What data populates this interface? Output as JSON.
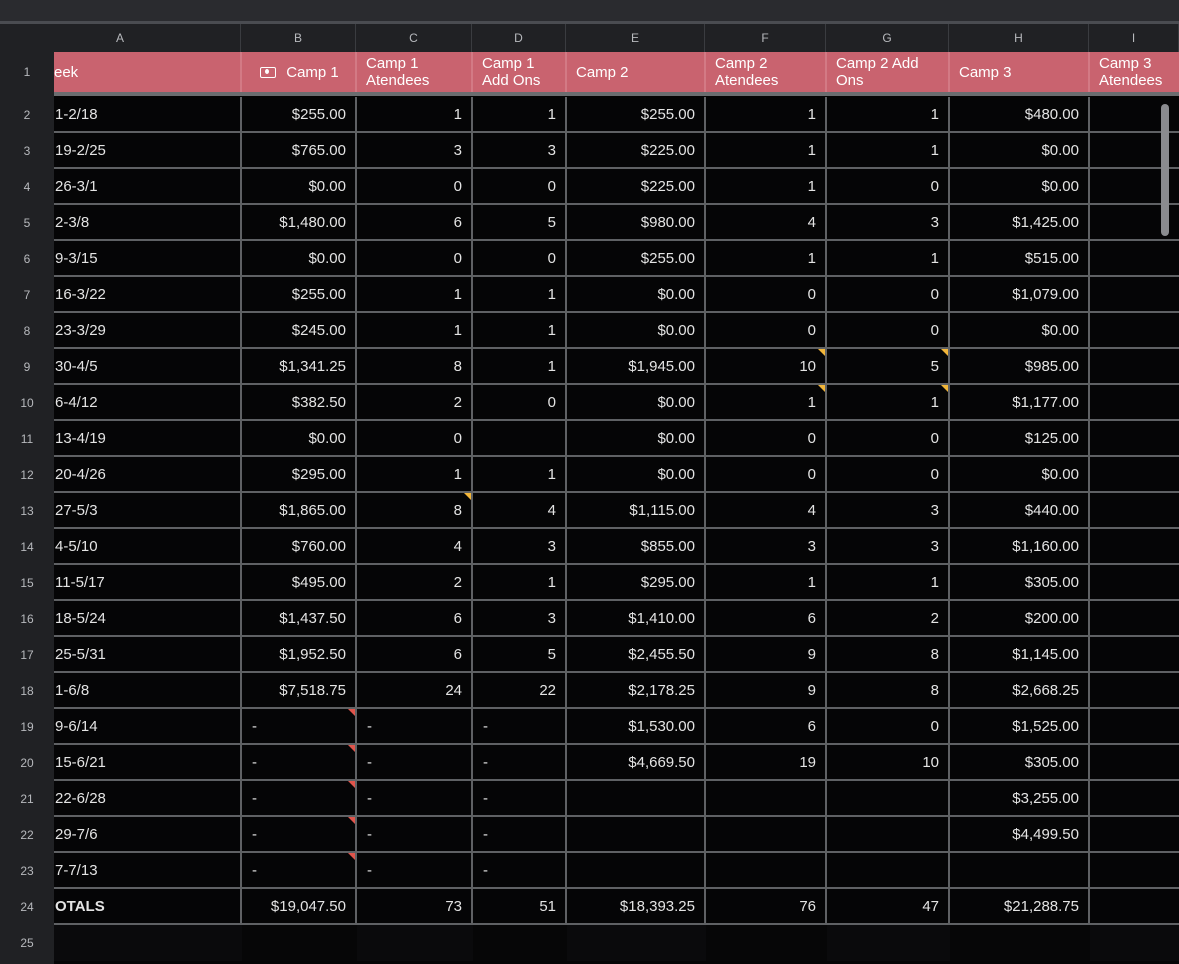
{
  "column_letters": [
    "A",
    "B",
    "C",
    "D",
    "E",
    "F",
    "G",
    "H",
    "I"
  ],
  "headers": [
    "eek",
    "Camp 1",
    "Camp 1 Atendees",
    "Camp 1 Add Ons",
    "Camp 2",
    "Camp 2 Atendees",
    "Camp 2 Add Ons",
    "Camp 3",
    "Camp 3 Atendees"
  ],
  "header_icon": "money-icon",
  "rows": [
    {
      "num": "2",
      "cells": [
        "1-2/18",
        "$255.00",
        "1",
        "1",
        "$255.00",
        "1",
        "1",
        "$480.00",
        ""
      ]
    },
    {
      "num": "3",
      "cells": [
        "19-2/25",
        "$765.00",
        "3",
        "3",
        "$225.00",
        "1",
        "1",
        "$0.00",
        ""
      ]
    },
    {
      "num": "4",
      "cells": [
        "26-3/1",
        "$0.00",
        "0",
        "0",
        "$225.00",
        "1",
        "0",
        "$0.00",
        ""
      ]
    },
    {
      "num": "5",
      "cells": [
        "2-3/8",
        "$1,480.00",
        "6",
        "5",
        "$980.00",
        "4",
        "3",
        "$1,425.00",
        ""
      ]
    },
    {
      "num": "6",
      "cells": [
        "9-3/15",
        "$0.00",
        "0",
        "0",
        "$255.00",
        "1",
        "1",
        "$515.00",
        ""
      ]
    },
    {
      "num": "7",
      "cells": [
        "16-3/22",
        "$255.00",
        "1",
        "1",
        "$0.00",
        "0",
        "0",
        "$1,079.00",
        ""
      ]
    },
    {
      "num": "8",
      "cells": [
        "23-3/29",
        "$245.00",
        "1",
        "1",
        "$0.00",
        "0",
        "0",
        "$0.00",
        ""
      ]
    },
    {
      "num": "9",
      "cells": [
        "30-4/5",
        "$1,341.25",
        "8",
        "1",
        "$1,945.00",
        "10",
        "5",
        "$985.00",
        ""
      ],
      "notes": {
        "5": "yellow",
        "6": "yellow"
      }
    },
    {
      "num": "10",
      "cells": [
        "6-4/12",
        "$382.50",
        "2",
        "0",
        "$0.00",
        "1",
        "1",
        "$1,177.00",
        ""
      ],
      "notes": {
        "5": "yellow",
        "6": "yellow"
      }
    },
    {
      "num": "11",
      "cells": [
        "13-4/19",
        "$0.00",
        "0",
        "",
        "$0.00",
        "0",
        "0",
        "$125.00",
        ""
      ]
    },
    {
      "num": "12",
      "cells": [
        "20-4/26",
        "$295.00",
        "1",
        "1",
        "$0.00",
        "0",
        "0",
        "$0.00",
        ""
      ]
    },
    {
      "num": "13",
      "cells": [
        "27-5/3",
        "$1,865.00",
        "8",
        "4",
        "$1,115.00",
        "4",
        "3",
        "$440.00",
        ""
      ],
      "notes": {
        "2": "yellow"
      }
    },
    {
      "num": "14",
      "cells": [
        "4-5/10",
        "$760.00",
        "4",
        "3",
        "$855.00",
        "3",
        "3",
        "$1,160.00",
        ""
      ]
    },
    {
      "num": "15",
      "cells": [
        "11-5/17",
        "$495.00",
        "2",
        "1",
        "$295.00",
        "1",
        "1",
        "$305.00",
        ""
      ]
    },
    {
      "num": "16",
      "cells": [
        "18-5/24",
        "$1,437.50",
        "6",
        "3",
        "$1,410.00",
        "6",
        "2",
        "$200.00",
        ""
      ]
    },
    {
      "num": "17",
      "cells": [
        "25-5/31",
        "$1,952.50",
        "6",
        "5",
        "$2,455.50",
        "9",
        "8",
        "$1,145.00",
        ""
      ]
    },
    {
      "num": "18",
      "cells": [
        "1-6/8",
        "$7,518.75",
        "24",
        "22",
        "$2,178.25",
        "9",
        "8",
        "$2,668.25",
        ""
      ]
    },
    {
      "num": "19",
      "cells": [
        "9-6/14",
        "-",
        "-",
        "-",
        "$1,530.00",
        "6",
        "0",
        "$1,525.00",
        ""
      ],
      "notes": {
        "1": "red"
      }
    },
    {
      "num": "20",
      "cells": [
        "15-6/21",
        "-",
        "-",
        "-",
        "$4,669.50",
        "19",
        "10",
        "$305.00",
        ""
      ],
      "notes": {
        "1": "red"
      }
    },
    {
      "num": "21",
      "cells": [
        "22-6/28",
        "-",
        "-",
        "-",
        "",
        "",
        "",
        "$3,255.00",
        ""
      ],
      "notes": {
        "1": "red"
      }
    },
    {
      "num": "22",
      "cells": [
        "29-7/6",
        "-",
        "-",
        "-",
        "",
        "",
        "",
        "$4,499.50",
        ""
      ],
      "notes": {
        "1": "red"
      }
    },
    {
      "num": "23",
      "cells": [
        "7-7/13",
        "-",
        "-",
        "-",
        "",
        "",
        "",
        "",
        ""
      ],
      "notes": {
        "1": "red"
      }
    }
  ],
  "totals": {
    "num": "24",
    "cells": [
      "OTALS",
      "$19,047.50",
      "73",
      "51",
      "$18,393.25",
      "76",
      "47",
      "$21,288.75",
      ""
    ]
  },
  "empty_row_num": "25",
  "header_row_num": "1"
}
